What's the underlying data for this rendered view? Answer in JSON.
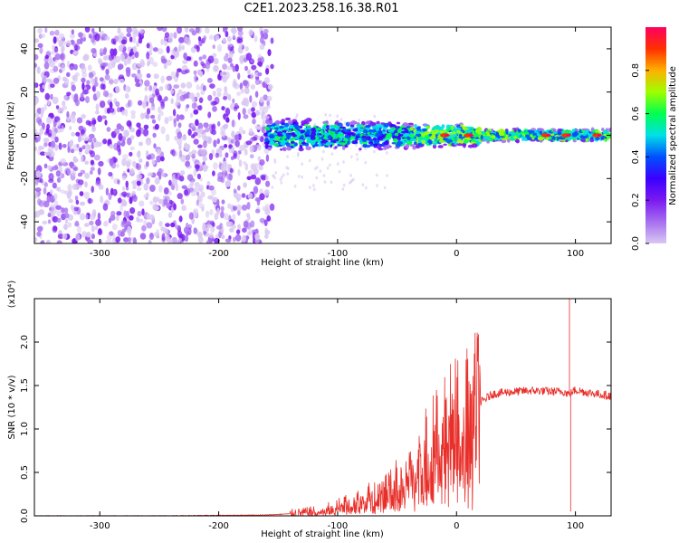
{
  "title": "C2E1.2023.258.16.38.R01",
  "colors": {
    "colormap": [
      "#d9c8f2",
      "#a66ef0",
      "#7a1af0",
      "#3b00ff",
      "#0050ff",
      "#00e0e6",
      "#00ff50",
      "#9eff00",
      "#ffb000",
      "#ff3000",
      "#ff0060"
    ],
    "snr_line": "#e8302b"
  },
  "chart_data": [
    {
      "type": "heatmap",
      "xlabel": "Height of straight line (km)",
      "ylabel": "Frequency (Hz)",
      "xlim": [
        -355,
        130
      ],
      "ylim": [
        -50,
        50
      ],
      "x_ticks": [
        -300,
        -200,
        -100,
        0,
        100
      ],
      "x_tick_labels": [
        "-300",
        "-200",
        "-100",
        "0",
        "100"
      ],
      "y_ticks": [
        -40,
        -20,
        0,
        20,
        40
      ],
      "y_tick_labels": [
        "-40",
        "-20",
        "0",
        "20",
        "40"
      ],
      "colorbar": {
        "label": "Normalized spectral amplitude",
        "range": [
          0.0,
          1.0
        ],
        "ticks": [
          0.0,
          0.2,
          0.4,
          0.6,
          0.8
        ],
        "tick_labels": [
          "0.0",
          "0.2",
          "0.4",
          "0.6",
          "0.8"
        ]
      },
      "features": {
        "noise_region_km": [
          -355,
          -155
        ],
        "signal_band_center_hz": 0,
        "signal_band_halfwidth_hz": [
          8,
          3
        ],
        "strong_peaks_km": [
          -10,
          10,
          75,
          92,
          118
        ]
      }
    },
    {
      "type": "line",
      "xlabel": "Height of straight line (km)",
      "ylabel": "SNR (10 * v/v)",
      "y_multiplier": "(x10⁴)",
      "xlim": [
        -355,
        130
      ],
      "ylim": [
        0.0,
        2.5
      ],
      "x_ticks": [
        -300,
        -200,
        -100,
        0,
        100
      ],
      "x_tick_labels": [
        "-300",
        "-200",
        "-100",
        "0",
        "100"
      ],
      "y_ticks": [
        0.0,
        0.5,
        1.0,
        1.5,
        2.0
      ],
      "y_tick_labels": [
        "0.0",
        "0.5",
        "1.0",
        "1.5",
        "2.0"
      ],
      "series": [
        {
          "x": [
            -355,
            -250,
            -160,
            -130,
            -110,
            -100,
            -90,
            -80,
            -70,
            -60,
            -50,
            -40,
            -30,
            -20,
            -10,
            0,
            10,
            20,
            30,
            40,
            50,
            60,
            70,
            80,
            90,
            95,
            100,
            110,
            120,
            130
          ],
          "values": [
            0.0,
            0.0,
            0.01,
            0.03,
            0.06,
            0.1,
            0.13,
            0.17,
            0.22,
            0.3,
            0.4,
            0.52,
            0.7,
            0.85,
            0.98,
            1.08,
            1.15,
            1.3,
            1.4,
            1.42,
            1.43,
            1.44,
            1.44,
            1.43,
            1.43,
            1.4,
            1.45,
            1.42,
            1.4,
            1.38
          ],
          "spikes": [
            {
              "x": 95,
              "y": 2.6
            },
            {
              "x": 96,
              "y": 0.05
            }
          ]
        }
      ]
    }
  ]
}
